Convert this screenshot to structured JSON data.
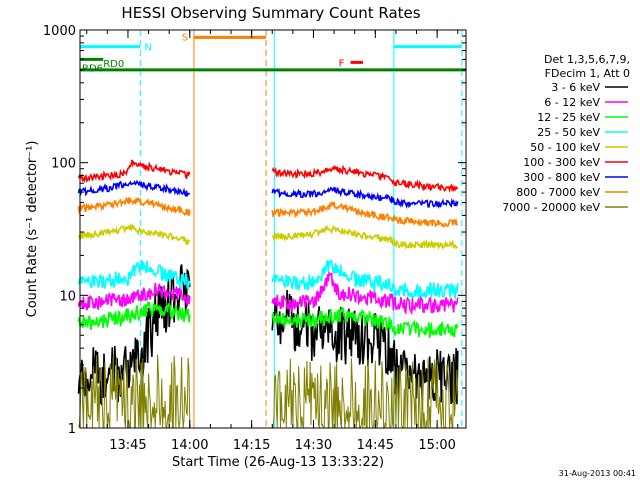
{
  "chart_data": {
    "type": "line",
    "title": "HESSI Observing Summary Count Rates",
    "xlabel": "Start Time (26-Aug-13 13:33:22)",
    "ylabel": "Count Rate (s⁻¹ detector⁻¹)",
    "yscale": "log",
    "ylim": [
      1,
      1000
    ],
    "xlim": [
      "13:33:22",
      "15:07:00"
    ],
    "yticks": [
      {
        "value": 1,
        "label": "1"
      },
      {
        "value": 10,
        "label": "10"
      },
      {
        "value": 100,
        "label": "100"
      },
      {
        "value": 1000,
        "label": "1000"
      }
    ],
    "xticks": [
      "13:45",
      "14:00",
      "14:15",
      "14:30",
      "14:45",
      "15:00"
    ],
    "legend": {
      "position": "right",
      "header": [
        "Det 1,3,5,6,7,9,",
        "FDecim 1, Att 0"
      ],
      "entries": [
        {
          "label": "3 - 6 keV",
          "color": "#000000"
        },
        {
          "label": "6 - 12 keV",
          "color": "#ff00ff"
        },
        {
          "label": "12 - 25 keV",
          "color": "#00ff00"
        },
        {
          "label": "25 - 50 keV",
          "color": "#00ffff"
        },
        {
          "label": "50 - 100 keV",
          "color": "#cccc00"
        },
        {
          "label": "100 - 300 keV",
          "color": "#ff0000"
        },
        {
          "label": "300 - 800 keV",
          "color": "#0000ff"
        },
        {
          "label": "800 - 7000 keV",
          "color": "#ff8000"
        },
        {
          "label": "7000 - 20000 keV",
          "color": "#808000"
        }
      ]
    },
    "series": [
      {
        "name": "3 - 6 keV",
        "color": "#000000",
        "x": [
          "13:33",
          "13:45",
          "13:48",
          "13:52",
          "13:56",
          "14:00",
          "14:01",
          "14:19",
          "14:20",
          "14:25",
          "14:30",
          "14:35",
          "14:40",
          "14:45",
          "14:49",
          "14:50",
          "14:55",
          "15:00",
          "15:05"
        ],
        "y": [
          2.5,
          2.5,
          3.5,
          7.0,
          10.0,
          11.0,
          null,
          null,
          7.5,
          6.5,
          5.0,
          5.0,
          5.0,
          4.5,
          4.0,
          2.5,
          2.5,
          2.5,
          2.5
        ]
      },
      {
        "name": "6 - 12 keV",
        "color": "#ff00ff",
        "x": [
          "13:33",
          "13:40",
          "13:45",
          "13:48",
          "13:52",
          "13:56",
          "14:00",
          "14:01",
          "14:19",
          "14:20",
          "14:25",
          "14:30",
          "14:34",
          "14:36",
          "14:40",
          "14:45",
          "14:49",
          "14:50",
          "14:55",
          "15:00",
          "15:05"
        ],
        "y": [
          8.5,
          9.0,
          9.5,
          10.0,
          11.0,
          10.5,
          9.5,
          null,
          null,
          9.0,
          8.5,
          9.0,
          14.0,
          10.5,
          10.0,
          9.5,
          9.0,
          8.5,
          8.5,
          8.5,
          8.5
        ]
      },
      {
        "name": "12 - 25 keV",
        "color": "#00ff00",
        "x": [
          "13:33",
          "13:45",
          "13:48",
          "13:52",
          "13:56",
          "14:00",
          "14:01",
          "14:19",
          "14:20",
          "14:25",
          "14:30",
          "14:35",
          "14:40",
          "14:45",
          "14:49",
          "14:50",
          "14:55",
          "15:00",
          "15:05"
        ],
        "y": [
          6.0,
          7.0,
          7.5,
          8.0,
          7.5,
          7.0,
          null,
          null,
          6.5,
          6.5,
          6.5,
          7.0,
          7.0,
          6.5,
          6.0,
          5.5,
          5.5,
          5.5,
          5.5
        ]
      },
      {
        "name": "25 - 50 keV",
        "color": "#00ffff",
        "x": [
          "13:33",
          "13:40",
          "13:45",
          "13:48",
          "13:52",
          "13:56",
          "14:00",
          "14:01",
          "14:19",
          "14:20",
          "14:25",
          "14:30",
          "14:34",
          "14:40",
          "14:45",
          "14:49",
          "14:50",
          "14:55",
          "15:00",
          "15:05"
        ],
        "y": [
          12.0,
          13.0,
          13.5,
          17.0,
          15.0,
          13.5,
          12.5,
          null,
          null,
          12.5,
          12.5,
          12.5,
          17.0,
          13.0,
          12.5,
          12.0,
          11.0,
          11.0,
          11.0,
          11.0
        ]
      },
      {
        "name": "50 - 100 keV",
        "color": "#cccc00",
        "x": [
          "13:33",
          "13:40",
          "13:45",
          "13:50",
          "13:55",
          "14:00",
          "14:01",
          "14:19",
          "14:20",
          "14:25",
          "14:30",
          "14:35",
          "14:40",
          "14:45",
          "14:49",
          "14:50",
          "14:55",
          "15:00",
          "15:05"
        ],
        "y": [
          28.0,
          30.0,
          32.0,
          30.0,
          28.0,
          25.0,
          null,
          null,
          28.0,
          28.0,
          29.0,
          32.0,
          29.0,
          27.0,
          26.0,
          24.0,
          24.0,
          24.0,
          24.0
        ]
      },
      {
        "name": "100 - 300 keV",
        "color": "#ff0000",
        "x": [
          "13:33",
          "13:40",
          "13:44",
          "13:46",
          "13:48",
          "13:52",
          "13:56",
          "14:00",
          "14:01",
          "14:19",
          "14:20",
          "14:25",
          "14:30",
          "14:35",
          "14:40",
          "14:45",
          "14:49",
          "14:50",
          "14:55",
          "15:00",
          "15:05"
        ],
        "y": [
          75.0,
          80.0,
          82.0,
          100.0,
          95.0,
          90.0,
          85.0,
          80.0,
          null,
          null,
          85.0,
          82.0,
          83.0,
          90.0,
          85.0,
          80.0,
          76.0,
          70.0,
          68.0,
          65.0,
          64.0
        ]
      },
      {
        "name": "300 - 800 keV",
        "color": "#0000ff",
        "x": [
          "13:33",
          "13:40",
          "13:45",
          "13:48",
          "13:52",
          "13:56",
          "14:00",
          "14:01",
          "14:19",
          "14:20",
          "14:25",
          "14:30",
          "14:35",
          "14:40",
          "14:45",
          "14:49",
          "14:50",
          "14:55",
          "15:00",
          "15:05"
        ],
        "y": [
          60.0,
          64.0,
          70.0,
          68.0,
          65.0,
          62.0,
          58.0,
          null,
          null,
          60.0,
          58.0,
          58.0,
          62.0,
          58.0,
          55.0,
          53.0,
          50.0,
          49.0,
          49.0,
          49.0
        ]
      },
      {
        "name": "800 - 7000 keV",
        "color": "#ff8000",
        "x": [
          "13:33",
          "13:40",
          "13:45",
          "13:50",
          "13:55",
          "14:00",
          "14:01",
          "14:19",
          "14:20",
          "14:25",
          "14:30",
          "14:35",
          "14:40",
          "14:45",
          "14:49",
          "14:50",
          "14:55",
          "15:00",
          "15:05"
        ],
        "y": [
          45.0,
          48.0,
          52.0,
          50.0,
          46.0,
          42.0,
          null,
          null,
          42.0,
          42.0,
          43.0,
          48.0,
          44.0,
          40.0,
          38.0,
          37.0,
          36.0,
          35.0,
          35.0
        ]
      },
      {
        "name": "7000 - 20000 keV",
        "color": "#808000",
        "x": [
          "13:33",
          "13:45",
          "13:50",
          "13:55",
          "14:00",
          "14:01",
          "14:19",
          "14:20",
          "14:30",
          "14:40",
          "14:50",
          "15:00",
          "15:05"
        ],
        "y": [
          1.6,
          1.6,
          1.6,
          1.6,
          1.6,
          null,
          null,
          1.5,
          1.5,
          1.5,
          1.5,
          1.5,
          1.5
        ]
      }
    ],
    "annotations": {
      "vertical_lines": [
        {
          "time": "13:33:22",
          "color": "#00ffff",
          "style": "solid"
        },
        {
          "time": "13:48:00",
          "color": "#00ffff",
          "style": "dashed"
        },
        {
          "time": "14:01:00",
          "color": "#ff8000",
          "style": "solid"
        },
        {
          "time": "14:18:30",
          "color": "#ff8000",
          "style": "dashed"
        },
        {
          "time": "14:20:30",
          "color": "#00ffff",
          "style": "solid"
        },
        {
          "time": "14:49:30",
          "color": "#00ffff",
          "style": "solid"
        },
        {
          "time": "15:06:00",
          "color": "#00ffff",
          "style": "dashed"
        }
      ],
      "bars": [
        {
          "label": "N",
          "color": "#00ffff",
          "start": "13:33:22",
          "end": "13:48:00",
          "level": 750
        },
        {
          "label": "",
          "color": "#00ffff",
          "start": "14:49:30",
          "end": "15:06:00",
          "level": 750
        },
        {
          "label": "S",
          "color": "#ff8000",
          "start": "14:01:00",
          "end": "14:18:30",
          "level": 880
        },
        {
          "label": "RD0",
          "color": "#008000",
          "start": "13:33:22",
          "end": "15:07:00",
          "level": 500
        },
        {
          "label": "RD6",
          "color": "#008000",
          "start": "13:33:22",
          "end": "13:39:00",
          "level": 600
        },
        {
          "label": "F",
          "color": "#ff0000",
          "start": "14:39:00",
          "end": "14:42:00",
          "level": 570
        }
      ]
    },
    "footer_date": "31-Aug-2013 00:41"
  }
}
